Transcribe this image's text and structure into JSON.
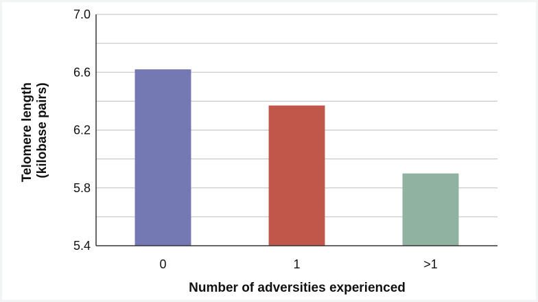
{
  "chart_data": {
    "type": "bar",
    "categories": [
      "0",
      "1",
      ">1"
    ],
    "values": [
      6.62,
      6.37,
      5.9
    ],
    "colors": [
      "#7479b4",
      "#c1574b",
      "#90b3a1"
    ],
    "ylim": [
      5.4,
      7.0
    ],
    "yticks": [
      "5.4",
      "5.8",
      "6.2",
      "6.6",
      "7.0"
    ],
    "ytick_values": [
      5.4,
      5.8,
      6.2,
      6.6,
      7.0
    ],
    "minor_grid_values": [
      5.6,
      6.0,
      6.4,
      6.8
    ],
    "grid": true,
    "xlabel": "Number of adversities experienced",
    "ylabel_lines": [
      "Telomere length",
      "(kilobase pairs)"
    ]
  }
}
